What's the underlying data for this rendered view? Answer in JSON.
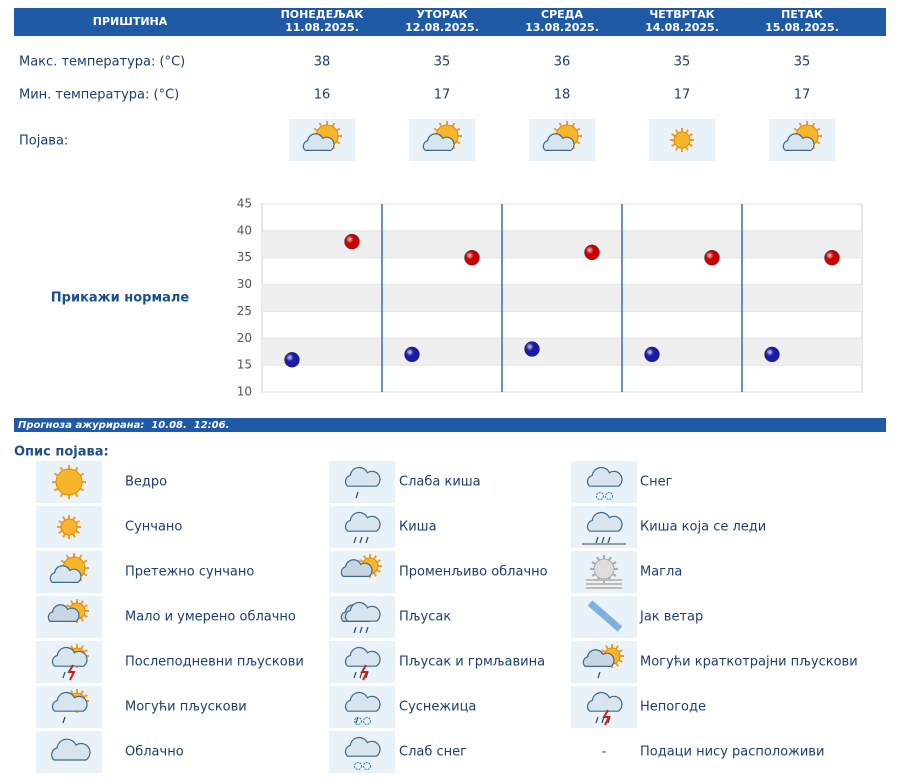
{
  "header": {
    "city": "ПРИШТИНА"
  },
  "days": [
    {
      "name": "ПОНЕДЕЉАК",
      "date": "11.08.2025."
    },
    {
      "name": "УТОРАК",
      "date": "12.08.2025."
    },
    {
      "name": "СРЕДА",
      "date": "13.08.2025."
    },
    {
      "name": "ЧЕТВРТАК",
      "date": "14.08.2025."
    },
    {
      "name": "ПЕТАК",
      "date": "15.08.2025."
    }
  ],
  "table": {
    "phenomenon_label": "Појава:"
  },
  "show_normals": "Прикажи нормале",
  "chart_data": {
    "type": "scatter",
    "series": [
      {
        "name": "Макс. температура: (°C)",
        "color": "#cc0000",
        "values": [
          38,
          35,
          36,
          35,
          35
        ]
      },
      {
        "name": "Мин. температура: (°C)",
        "color": "#1a1aa8",
        "values": [
          16,
          17,
          18,
          17,
          17
        ]
      }
    ],
    "ylim": [
      10,
      45
    ],
    "yticks": [
      10,
      15,
      20,
      25,
      30,
      35,
      40,
      45
    ],
    "grid": true
  },
  "updated": "Прогноза ажурирана:  10.08.  12:06.",
  "legend": {
    "title": "Опис појава:",
    "columns": [
      [
        {
          "label": "Ведро"
        },
        {
          "label": "Сунчано"
        },
        {
          "label": "Претежно сунчано"
        },
        {
          "label": "Мало и умерено облачно"
        },
        {
          "label": "Послеподневни пљускови"
        },
        {
          "label": "Могући пљускови"
        },
        {
          "label": "Облачно"
        }
      ],
      [
        {
          "label": "Слаба киша"
        },
        {
          "label": "Киша"
        },
        {
          "label": "Променљиво облачно"
        },
        {
          "label": "Пљусак"
        },
        {
          "label": "Пљусак и грмљавина"
        },
        {
          "label": "Суснежица"
        },
        {
          "label": "Слаб снег"
        }
      ],
      [
        {
          "label": "Снег"
        },
        {
          "label": "Киша која се леди"
        },
        {
          "label": "Магла"
        },
        {
          "label": "Јак ветар"
        },
        {
          "label": "Могући краткотрајни пљускови"
        },
        {
          "label": "Непогоде"
        },
        {
          "symbol": "-",
          "label": "Подаци нису расположиви"
        }
      ]
    ]
  }
}
